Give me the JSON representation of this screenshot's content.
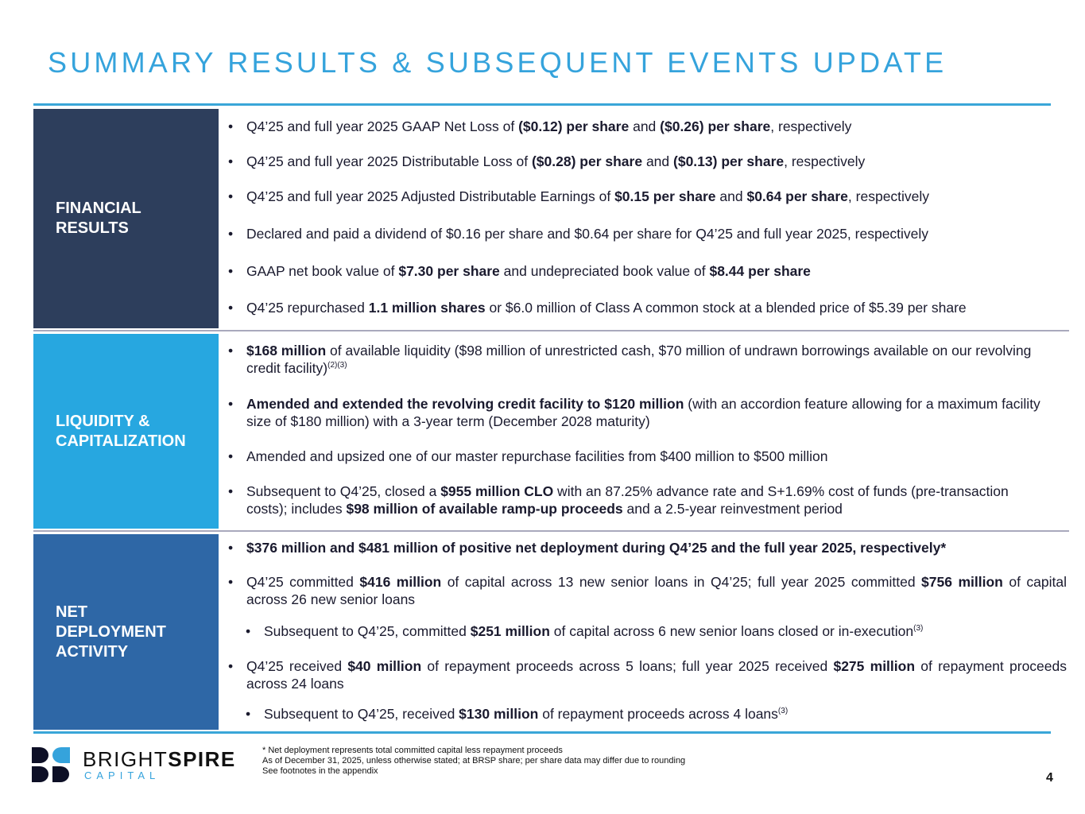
{
  "title": "SUMMARY RESULTS & SUBSEQUENT EVENTS UPDATE",
  "colors": {
    "title": "#35a3dc",
    "financial_panel": "#2d3e5c",
    "liquidity_panel": "#27a7e0",
    "deployment_panel": "#2e67a6"
  },
  "sections": [
    {
      "label": [
        "FINANCIAL",
        "RESULTS"
      ],
      "bullets": [
        {
          "segments": [
            {
              "t": "Q4’25 and full year 2025 GAAP Net Loss of "
            },
            {
              "t": "($0.12) per share",
              "style": "bold"
            },
            {
              "t": " and "
            },
            {
              "t": "($0.26) per share",
              "style": "bold"
            },
            {
              "t": ", respectively"
            }
          ]
        },
        {
          "segments": [
            {
              "t": "Q4’25 and full year 2025 Distributable Loss of "
            },
            {
              "t": "($0.28) per share",
              "style": "bold"
            },
            {
              "t": " and "
            },
            {
              "t": "($0.13) per share",
              "style": "bold"
            },
            {
              "t": ", respectively"
            }
          ]
        },
        {
          "segments": [
            {
              "t": "Q4’25 and full year 2025 Adjusted Distributable Earnings of "
            },
            {
              "t": "$0.15 per share",
              "style": "bold"
            },
            {
              "t": " and "
            },
            {
              "t": "$0.64 per share",
              "style": "bold"
            },
            {
              "t": ", respectively"
            }
          ]
        },
        {
          "segments": [
            {
              "t": "Declared and paid a dividend of $0.16 per share and $0.64 per share for Q4’25 and full year 2025, respectively"
            }
          ]
        },
        {
          "segments": [
            {
              "t": "GAAP net book value of "
            },
            {
              "t": "$7.30 per share",
              "style": "bold"
            },
            {
              "t": " and undepreciated book value of "
            },
            {
              "t": "$8.44 per share",
              "style": "bold"
            }
          ]
        },
        {
          "segments": [
            {
              "t": "Q4’25 repurchased "
            },
            {
              "t": "1.1 million shares",
              "style": "bold"
            },
            {
              "t": " or $6.0 million of Class A common stock at a blended price of $5.39 per share"
            }
          ]
        }
      ]
    },
    {
      "label": [
        "LIQUIDITY &",
        "CAPITALIZATION"
      ],
      "bullets": [
        {
          "segments": [
            {
              "t": "$168 million",
              "style": "bold"
            },
            {
              "t": " of available liquidity ($98 million of unrestricted cash, $70 million of undrawn borrowings available on our revolving credit facility)"
            },
            {
              "t": "(2)(3)",
              "style": "sup"
            }
          ]
        },
        {
          "segments": [
            {
              "t": "Amended and extended the revolving credit facility to $120 million",
              "style": "bold"
            },
            {
              "t": " (with an accordion feature allowing for a maximum facility size of $180 million) with a 3-year term (December 2028 maturity)"
            }
          ]
        },
        {
          "segments": [
            {
              "t": "Amended and upsized one of our master repurchase facilities from $400 million to $500 million"
            }
          ]
        },
        {
          "segments": [
            {
              "t": "Subsequent to Q4’25, closed a "
            },
            {
              "t": "$955 million CLO",
              "style": "bold"
            },
            {
              "t": " with an 87.25% advance rate and S+1.69% cost of funds (pre-transaction costs); includes "
            },
            {
              "t": "$98 million of available ramp-up proceeds",
              "style": "bold"
            },
            {
              "t": " and a 2.5-year reinvestment period"
            }
          ]
        }
      ]
    },
    {
      "label": [
        "NET",
        "DEPLOYMENT",
        "ACTIVITY"
      ],
      "bullets": [
        {
          "segments": [
            {
              "t": "$376 million and $481 million of positive net deployment during Q4’25 and the full year 2025, respectively*",
              "style": "bold"
            }
          ]
        },
        {
          "segments": [
            {
              "t": "Q4’25 committed "
            },
            {
              "t": "$416 million",
              "style": "bold"
            },
            {
              "t": " of capital across 13 new senior loans in Q4’25; full year 2025 committed "
            },
            {
              "t": "$756 million",
              "style": "bold"
            },
            {
              "t": " of capital across 26 new senior loans"
            }
          ]
        },
        {
          "segments": [
            {
              "t": "Subsequent to Q4’25, committed "
            },
            {
              "t": "$251 million",
              "style": "bold"
            },
            {
              "t": " of capital across 6 new senior loans closed or in-execution"
            },
            {
              "t": "(3)",
              "style": "sup"
            }
          ]
        },
        {
          "segments": [
            {
              "t": "Q4’25 received "
            },
            {
              "t": "$40 million",
              "style": "bold"
            },
            {
              "t": " of repayment proceeds across 5 loans; full year 2025 received "
            },
            {
              "t": "$275 million",
              "style": "bold"
            },
            {
              "t": " of repayment proceeds across 24 loans"
            }
          ]
        },
        {
          "segments": [
            {
              "t": "Subsequent to Q4’25, received "
            },
            {
              "t": "$130 million",
              "style": "bold"
            },
            {
              "t": " of repayment proceeds across 4 loans"
            },
            {
              "t": "(3)",
              "style": "sup"
            }
          ]
        }
      ]
    }
  ],
  "logo": {
    "name_regular": "BRIGHT",
    "name_bold": "SPIRE",
    "sub": "CAPITAL"
  },
  "footnotes": [
    "* Net deployment represents total committed capital less repayment proceeds",
    "As of December 31, 2025, unless otherwise stated; at BRSP share; per share data may differ due to rounding",
    "See footnotes in the appendix"
  ],
  "page_number": "4"
}
